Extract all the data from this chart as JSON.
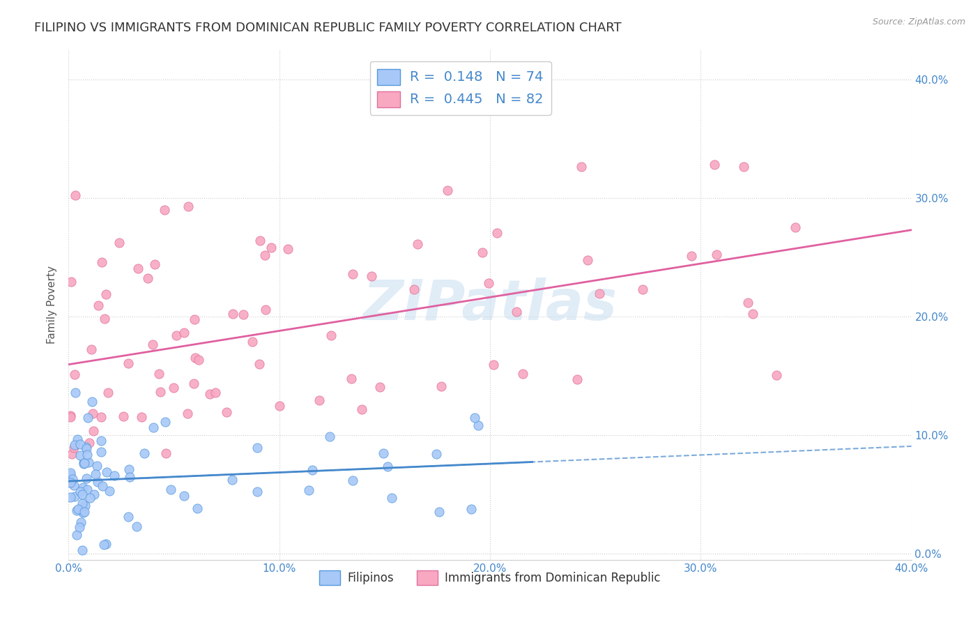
{
  "title": "FILIPINO VS IMMIGRANTS FROM DOMINICAN REPUBLIC FAMILY POVERTY CORRELATION CHART",
  "source": "Source: ZipAtlas.com",
  "ylabel": "Family Poverty",
  "ytick_values": [
    0.0,
    0.1,
    0.2,
    0.3,
    0.4
  ],
  "xlim": [
    0.0,
    0.4
  ],
  "ylim": [
    -0.005,
    0.425
  ],
  "filipino_R": 0.148,
  "filipino_N": 74,
  "dominican_R": 0.445,
  "dominican_N": 82,
  "filipino_scatter_color": "#a8c8f8",
  "filipino_scatter_edge": "#5599dd",
  "dominican_scatter_color": "#f8a8c0",
  "dominican_scatter_edge": "#e070a0",
  "filipino_line_color": "#4488cc",
  "dominican_line_color": "#e060a0",
  "legend_label_filipino": "Filipinos",
  "legend_label_dominican": "Immigrants from Dominican Republic",
  "watermark_text": "ZIPatlas",
  "watermark_color": "#c8ddf0",
  "background_color": "#ffffff",
  "grid_color": "#cccccc",
  "title_color": "#333333",
  "axis_tick_color": "#4488cc",
  "ylabel_color": "#555555"
}
